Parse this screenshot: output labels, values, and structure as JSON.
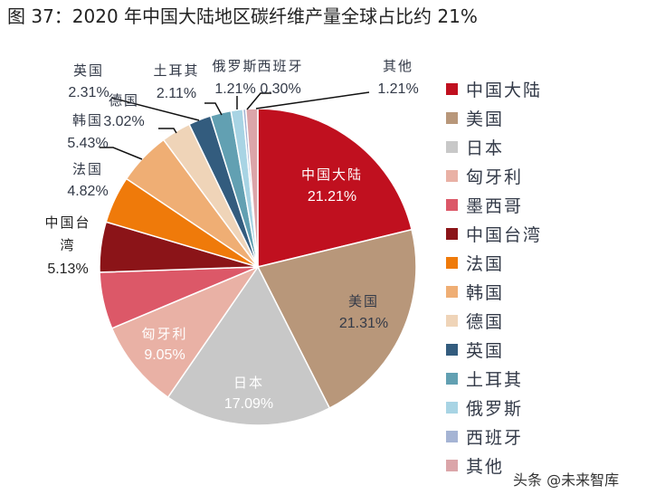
{
  "title": "图 37：2020 年中国大陆地区碳纤维产量全球占比约 21%",
  "watermark": "头条 @未来智库",
  "chart_data": {
    "type": "pie",
    "start": "12 o'clock, clockwise",
    "legend_position": "right",
    "slices": [
      {
        "name": "中国大陆",
        "value": 21.21,
        "label": "21.21%",
        "color": "#c0101f"
      },
      {
        "name": "美国",
        "value": 21.31,
        "label": "21.31%",
        "color": "#b8977a"
      },
      {
        "name": "日本",
        "value": 17.09,
        "label": "17.09%",
        "color": "#c8c8c8"
      },
      {
        "name": "匈牙利",
        "value": 9.05,
        "label": "9.05%",
        "color": "#e9b1a5"
      },
      {
        "name": "墨西哥",
        "value": 5.8,
        "label": "",
        "color": "#dc5868"
      },
      {
        "name": "中国台湾",
        "value": 5.13,
        "label": "5.13%",
        "color": "#8b1418"
      },
      {
        "name": "法国",
        "value": 4.82,
        "label": "4.82%",
        "color": "#ef7a0a"
      },
      {
        "name": "韩国",
        "value": 5.43,
        "label": "5.43%",
        "color": "#efae74"
      },
      {
        "name": "德国",
        "value": 3.02,
        "label": "3.02%",
        "color": "#efd4b8"
      },
      {
        "name": "英国",
        "value": 2.31,
        "label": "2.31%",
        "color": "#335c7e"
      },
      {
        "name": "土耳其",
        "value": 2.11,
        "label": "2.11%",
        "color": "#62a0b2"
      },
      {
        "name": "俄罗斯",
        "value": 1.21,
        "label": "1.21%",
        "color": "#a8d4e4"
      },
      {
        "name": "西班牙",
        "value": 0.3,
        "label": "0.30%",
        "color": "#a5b4d4"
      },
      {
        "name": "其他",
        "value": 1.21,
        "label": "1.21%",
        "color": "#dba5a9"
      }
    ]
  }
}
